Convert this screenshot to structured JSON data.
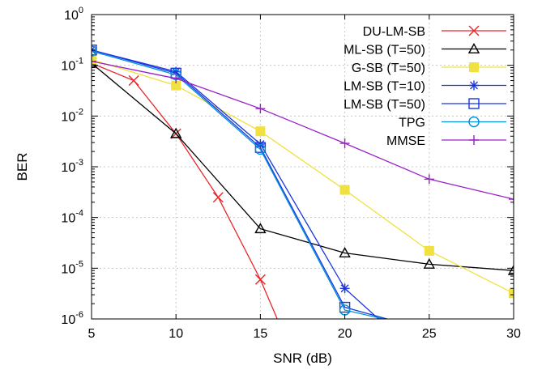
{
  "chart_data": {
    "type": "line",
    "xlabel": "SNR (dB)",
    "ylabel": "BER",
    "xlim": [
      5,
      30
    ],
    "ylim": [
      1e-06,
      1
    ],
    "yscale": "log",
    "grid": true,
    "legend_position": "top-right",
    "x_ticks": [
      {
        "value": 5,
        "label": "5"
      },
      {
        "value": 10,
        "label": "10"
      },
      {
        "value": 15,
        "label": "15"
      },
      {
        "value": 20,
        "label": "20"
      },
      {
        "value": 25,
        "label": "25"
      },
      {
        "value": 30,
        "label": "30"
      }
    ],
    "y_ticks": [
      {
        "value": 1e-06,
        "base": "10",
        "exp": "-6"
      },
      {
        "value": 1e-05,
        "base": "10",
        "exp": "-5"
      },
      {
        "value": 0.0001,
        "base": "10",
        "exp": "-4"
      },
      {
        "value": 0.001,
        "base": "10",
        "exp": "-3"
      },
      {
        "value": 0.01,
        "base": "10",
        "exp": "-2"
      },
      {
        "value": 0.1,
        "base": "10",
        "exp": "-1"
      },
      {
        "value": 1,
        "base": "10",
        "exp": "0"
      }
    ],
    "series": [
      {
        "name": "DU-LM-SB",
        "color": "#e8262a",
        "marker": "x",
        "x": [
          5,
          7.5,
          10,
          12.5,
          15,
          16
        ],
        "y": [
          0.11,
          0.05,
          0.0045,
          0.00025,
          6e-06,
          1e-06
        ]
      },
      {
        "name": "ML-SB (T=50)",
        "color": "#000000",
        "marker": "triangle-open",
        "x": [
          5,
          10,
          15,
          20,
          25,
          30
        ],
        "y": [
          0.11,
          0.0045,
          6e-05,
          2e-05,
          1.2e-05,
          9e-06
        ]
      },
      {
        "name": "G-SB (T=50)",
        "color": "#f0e040",
        "marker": "square-filled",
        "x": [
          5,
          10,
          15,
          20,
          25,
          30
        ],
        "y": [
          0.13,
          0.04,
          0.005,
          0.00035,
          2.2e-05,
          3.2e-06
        ]
      },
      {
        "name": "LM-SB (T=10)",
        "color": "#1a36e0",
        "marker": "star",
        "x": [
          5,
          10,
          15,
          20,
          22
        ],
        "y": [
          0.2,
          0.075,
          0.0028,
          4e-06,
          1e-06
        ]
      },
      {
        "name": "LM-SB (T=50)",
        "color": "#1a36e0",
        "marker": "square-open",
        "x": [
          5,
          10,
          15,
          20,
          22.5
        ],
        "y": [
          0.2,
          0.07,
          0.0024,
          1.7e-06,
          1e-06
        ]
      },
      {
        "name": "TPG",
        "color": "#0090d8",
        "marker": "circle-open",
        "x": [
          5,
          10,
          15,
          20,
          22.3
        ],
        "y": [
          0.19,
          0.065,
          0.0022,
          1.5e-06,
          1e-06
        ]
      },
      {
        "name": "MMSE",
        "color": "#9a20c8",
        "marker": "plus",
        "x": [
          5,
          10,
          15,
          20,
          25,
          30
        ],
        "y": [
          0.12,
          0.055,
          0.014,
          0.0029,
          0.00057,
          0.00023
        ]
      }
    ]
  }
}
